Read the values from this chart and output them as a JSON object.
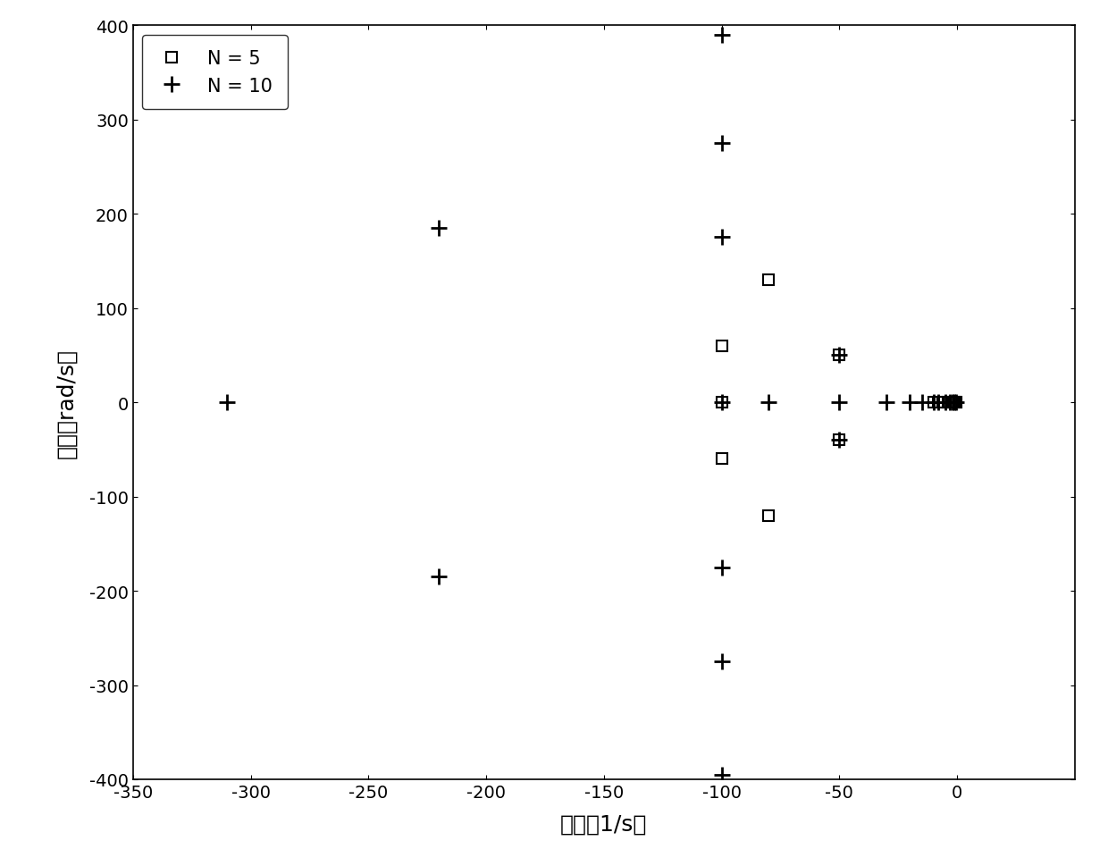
{
  "n5_x": [
    -100,
    -100,
    -80,
    -80,
    -50,
    -50,
    -100,
    -10,
    -8,
    -6,
    -4,
    -2,
    -1,
    -0.5,
    -0.3
  ],
  "n5_y": [
    60,
    -60,
    130,
    -120,
    50,
    -40,
    0,
    0,
    0,
    0,
    0,
    0,
    0,
    0,
    0
  ],
  "n10_x": [
    -310,
    -220,
    -220,
    -100,
    -100,
    -100,
    -100,
    -100,
    -100,
    -100,
    -80,
    -50,
    -50,
    -50,
    -30,
    -20,
    -15,
    -10,
    -8,
    -5,
    -3,
    -2,
    -1,
    -0.5
  ],
  "n10_y": [
    0,
    185,
    -185,
    390,
    275,
    175,
    -175,
    -275,
    -395,
    0,
    0,
    50,
    -40,
    0,
    0,
    0,
    0,
    0,
    0,
    0,
    0,
    0,
    0,
    0
  ],
  "xlabel": "实轴（1/s）",
  "ylabel": "虚轴（rad/s）",
  "xlim": [
    -350,
    50
  ],
  "ylim": [
    -400,
    400
  ],
  "xticks": [
    -350,
    -300,
    -250,
    -200,
    -150,
    -100,
    -50,
    0
  ],
  "yticks": [
    -400,
    -300,
    -200,
    -100,
    0,
    100,
    200,
    300,
    400
  ],
  "legend_n5": "N = 5",
  "legend_n10": "N = 10",
  "bg_color": "#ffffff",
  "marker_color": "#000000",
  "figwidth": 12.4,
  "figheight": 9.7,
  "dpi": 100
}
